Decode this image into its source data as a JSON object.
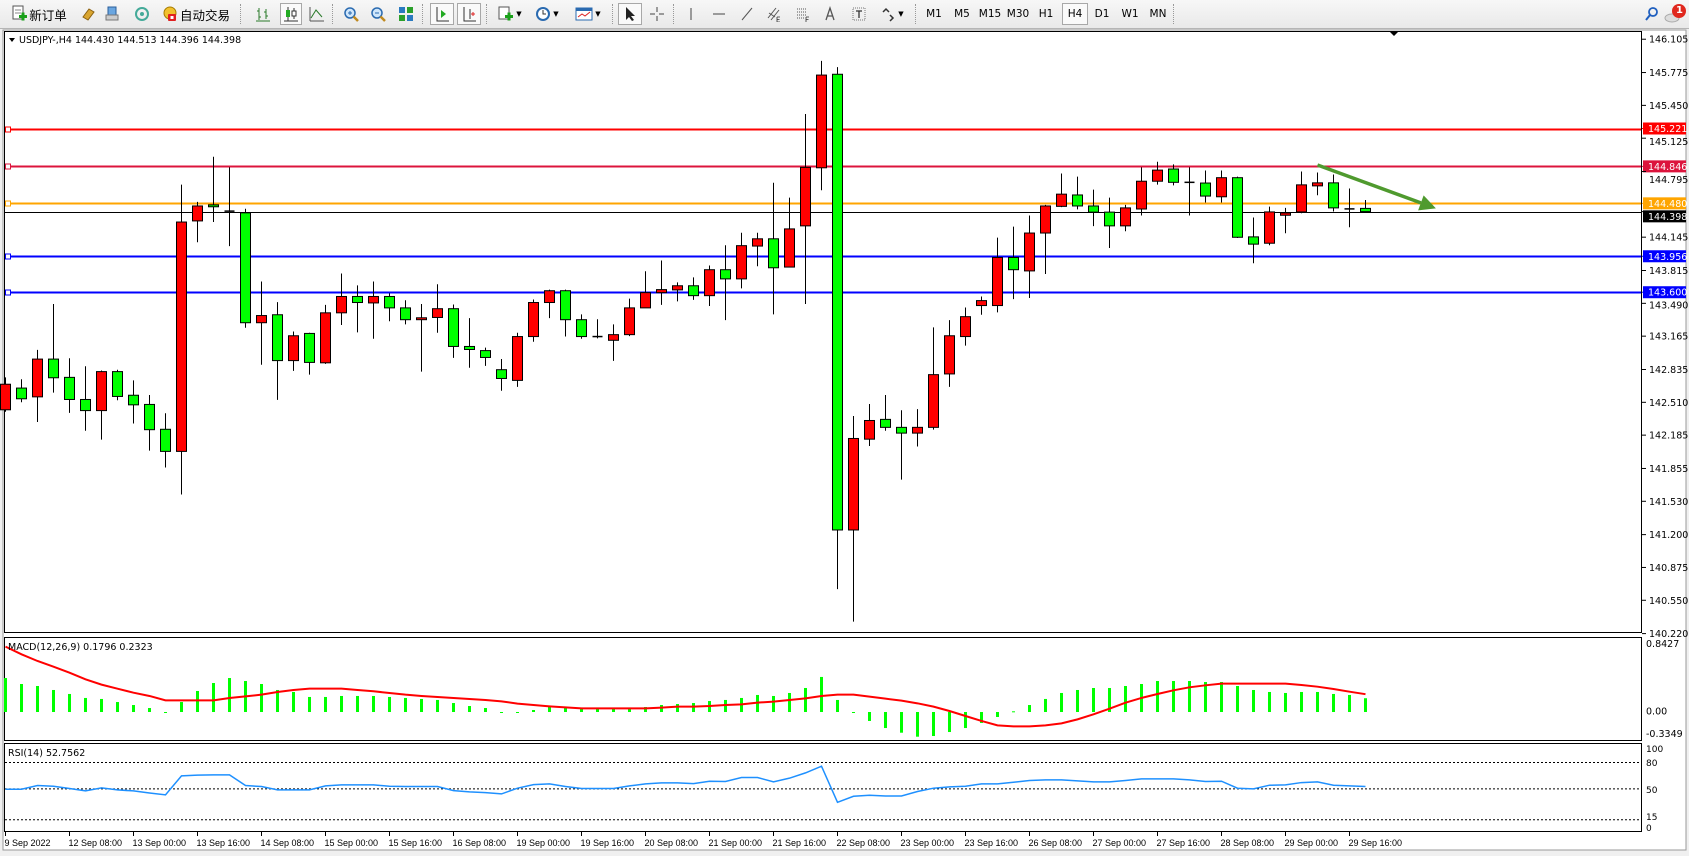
{
  "toolbar": {
    "new_order_label": "新订单",
    "auto_trading_label": "自动交易",
    "timeframes": [
      "M1",
      "M5",
      "M15",
      "M30",
      "H1",
      "H4",
      "D1",
      "W1",
      "MN"
    ],
    "active_timeframe": "H4",
    "notification_count": "1",
    "icons": [
      "new-order-icon",
      "market-watch-icon",
      "navigator-icon",
      "signals-icon",
      "auto-trading-icon",
      "bar-chart-icon",
      "candlestick-icon",
      "line-chart-icon",
      "zoom-in-icon",
      "zoom-out-icon",
      "tile-windows-icon",
      "chart-shift-icon",
      "auto-scroll-icon",
      "indicators-icon",
      "periods-icon",
      "templates-icon",
      "cursor-icon",
      "crosshair-icon",
      "vertical-line-icon",
      "horizontal-line-icon",
      "trendline-icon",
      "equidistant-channel-icon",
      "fibonacci-icon",
      "text-icon",
      "text-label-icon",
      "arrows-icon",
      "search-icon",
      "notification-icon"
    ]
  },
  "chart": {
    "header": "USDJPY-,H4  144.430 144.513 144.396 144.398",
    "macd_header": "MACD(12,26,9) 0.1796 0.2323",
    "rsi_header": "RSI(14) 52.7562"
  },
  "chart_data": {
    "type": "candlestick",
    "symbol": "USDJPY-",
    "timeframe": "H4",
    "bullish_color": "#ff0000",
    "bearish_color": "#00ff00",
    "price_axis_labels": [
      "146.105",
      "145.775",
      "145.450",
      "145.125",
      "144.795",
      "144.145",
      "143.815",
      "143.490",
      "143.165",
      "142.835",
      "142.510",
      "142.185",
      "141.855",
      "141.530",
      "141.200",
      "140.875",
      "140.550",
      "140.220"
    ],
    "time_labels": [
      "9 Sep 2022",
      "12 Sep 08:00",
      "13 Sep 00:00",
      "13 Sep 16:00",
      "14 Sep 08:00",
      "15 Sep 00:00",
      "15 Sep 16:00",
      "16 Sep 08:00",
      "19 Sep 00:00",
      "19 Sep 16:00",
      "20 Sep 08:00",
      "21 Sep 00:00",
      "21 Sep 16:00",
      "22 Sep 08:00",
      "23 Sep 00:00",
      "23 Sep 16:00",
      "26 Sep 08:00",
      "27 Sep 00:00",
      "27 Sep 16:00",
      "28 Sep 08:00",
      "29 Sep 00:00",
      "29 Sep 16:00"
    ],
    "ylim": [
      140.22,
      146.105
    ],
    "horizontal_lines": [
      {
        "price": "145.221",
        "color": "#ff0000"
      },
      {
        "price": "144.846",
        "color": "#dc143c"
      },
      {
        "price": "144.480",
        "color": "#ffa500"
      },
      {
        "price": "143.956",
        "color": "#0000ff"
      },
      {
        "price": "143.600",
        "color": "#0000ff"
      }
    ],
    "current_price": "144.398",
    "trend_arrow": {
      "color": "#4f9a2e",
      "from": {
        "candle": 82,
        "price": 144.86
      },
      "to": {
        "candle": 89.4,
        "price": 144.43
      }
    },
    "ohlc": [
      [
        142.436,
        142.757,
        142.417,
        142.689
      ],
      [
        142.651,
        142.738,
        142.511,
        142.545
      ],
      [
        142.564,
        143.029,
        142.315,
        142.938
      ],
      [
        142.938,
        143.483,
        142.606,
        142.753
      ],
      [
        142.757,
        142.946,
        142.406,
        142.538
      ],
      [
        142.538,
        142.867,
        142.228,
        142.428
      ],
      [
        142.428,
        142.825,
        142.141,
        142.814
      ],
      [
        142.814,
        142.833,
        142.53,
        142.568
      ],
      [
        142.58,
        142.727,
        142.3,
        142.485
      ],
      [
        142.489,
        142.583,
        142.032,
        142.239
      ],
      [
        142.243,
        142.402,
        141.865,
        142.024
      ],
      [
        142.024,
        144.665,
        141.597,
        144.295
      ],
      [
        144.306,
        144.495,
        144.095,
        144.454
      ],
      [
        144.465,
        144.941,
        144.295,
        144.446
      ],
      [
        144.405,
        144.836,
        144.057,
        144.403
      ],
      [
        144.386,
        144.427,
        143.248,
        143.298
      ],
      [
        143.298,
        143.706,
        142.882,
        143.369
      ],
      [
        143.377,
        143.502,
        142.534,
        142.923
      ],
      [
        142.923,
        143.211,
        142.821,
        143.169
      ],
      [
        143.192,
        143.199,
        142.784,
        142.905
      ],
      [
        142.901,
        143.475,
        142.89,
        143.396
      ],
      [
        143.396,
        143.785,
        143.275,
        143.558
      ],
      [
        143.558,
        143.668,
        143.203,
        143.498
      ],
      [
        143.494,
        143.706,
        143.139,
        143.558
      ],
      [
        143.558,
        143.588,
        143.313,
        143.445
      ],
      [
        143.445,
        143.521,
        143.282,
        143.328
      ],
      [
        143.328,
        143.483,
        142.814,
        143.347
      ],
      [
        143.35,
        143.679,
        143.199,
        143.437
      ],
      [
        143.437,
        143.479,
        142.95,
        143.063
      ],
      [
        143.063,
        143.343,
        142.852,
        143.033
      ],
      [
        143.022,
        143.052,
        142.871,
        142.954
      ],
      [
        142.833,
        142.939,
        142.625,
        142.746
      ],
      [
        142.727,
        143.199,
        142.663,
        143.161
      ],
      [
        143.161,
        143.528,
        143.109,
        143.498
      ],
      [
        143.498,
        143.626,
        143.343,
        143.615
      ],
      [
        143.615,
        143.626,
        143.161,
        143.328
      ],
      [
        143.328,
        143.381,
        143.139,
        143.161
      ],
      [
        143.165,
        143.332,
        143.143,
        143.161
      ],
      [
        143.124,
        143.282,
        142.92,
        143.18
      ],
      [
        143.18,
        143.536,
        143.165,
        143.445
      ],
      [
        143.445,
        143.808,
        143.445,
        143.596
      ],
      [
        143.596,
        143.914,
        143.475,
        143.626
      ],
      [
        143.623,
        143.698,
        143.509,
        143.664
      ],
      [
        143.664,
        143.747,
        143.524,
        143.566
      ],
      [
        143.566,
        143.864,
        143.464,
        143.823
      ],
      [
        143.823,
        144.065,
        143.324,
        143.732
      ],
      [
        143.732,
        144.189,
        143.638,
        144.061
      ],
      [
        144.057,
        144.189,
        143.857,
        144.129
      ],
      [
        144.129,
        144.684,
        143.381,
        143.842
      ],
      [
        143.849,
        144.537,
        143.849,
        144.227
      ],
      [
        144.257,
        145.365,
        143.483,
        144.836
      ],
      [
        144.832,
        145.89,
        144.609,
        145.75
      ],
      [
        145.758,
        145.829,
        140.66,
        141.246
      ],
      [
        141.246,
        142.375,
        140.339,
        142.152
      ],
      [
        142.145,
        142.493,
        142.077,
        142.33
      ],
      [
        142.341,
        142.583,
        142.228,
        142.262
      ],
      [
        142.262,
        142.432,
        141.744,
        142.205
      ],
      [
        142.205,
        142.443,
        142.073,
        142.262
      ],
      [
        142.262,
        143.252,
        142.239,
        142.784
      ],
      [
        142.791,
        143.324,
        142.663,
        143.169
      ],
      [
        143.161,
        143.449,
        143.071,
        143.358
      ],
      [
        143.468,
        143.558,
        143.377,
        143.517
      ],
      [
        143.468,
        144.14,
        143.4,
        143.944
      ],
      [
        143.944,
        144.25,
        143.532,
        143.823
      ],
      [
        143.811,
        144.359,
        143.543,
        144.186
      ],
      [
        144.186,
        144.465,
        143.781,
        144.454
      ],
      [
        144.45,
        144.775,
        144.443,
        144.571
      ],
      [
        144.563,
        144.745,
        144.42,
        144.454
      ],
      [
        144.454,
        144.616,
        144.254,
        144.393
      ],
      [
        144.393,
        144.537,
        144.038,
        144.257
      ],
      [
        144.257,
        144.465,
        144.204,
        144.435
      ],
      [
        144.424,
        144.836,
        144.359,
        144.699
      ],
      [
        144.699,
        144.892,
        144.665,
        144.809
      ],
      [
        144.82,
        144.866,
        144.658,
        144.688
      ],
      [
        144.69,
        144.836,
        144.359,
        144.688
      ],
      [
        144.681,
        144.805,
        144.488,
        144.552
      ],
      [
        144.545,
        144.805,
        144.488,
        144.734
      ],
      [
        144.734,
        144.745,
        144.137,
        144.144
      ],
      [
        144.148,
        144.34,
        143.887,
        144.076
      ],
      [
        144.085,
        144.448,
        144.065,
        144.395
      ],
      [
        144.362,
        144.435,
        144.184,
        144.385
      ],
      [
        144.395,
        144.795,
        144.382,
        144.663
      ],
      [
        144.653,
        144.785,
        144.56,
        144.683
      ],
      [
        144.683,
        144.765,
        144.399,
        144.435
      ],
      [
        144.428,
        144.627,
        144.243,
        144.425
      ],
      [
        144.43,
        144.513,
        144.396,
        144.398
      ]
    ],
    "macd": {
      "axis_labels": [
        "0.8427",
        "0.00",
        "-0.3349"
      ],
      "ylim": [
        -0.3349,
        0.8427
      ],
      "histogram_color": "#00ff00",
      "signal_color": "#ff0000",
      "histogram": [
        0.443,
        0.365,
        0.339,
        0.287,
        0.235,
        0.183,
        0.17,
        0.13,
        0.091,
        0.052,
        -0.01,
        0.13,
        0.274,
        0.378,
        0.443,
        0.404,
        0.365,
        0.287,
        0.261,
        0.196,
        0.196,
        0.209,
        0.209,
        0.209,
        0.196,
        0.183,
        0.17,
        0.157,
        0.117,
        0.078,
        0.052,
        -0.005,
        -0.01,
        0.026,
        0.065,
        0.052,
        0.052,
        0.052,
        0.052,
        0.052,
        0.065,
        0.091,
        0.104,
        0.117,
        0.143,
        0.157,
        0.183,
        0.222,
        0.209,
        0.248,
        0.313,
        0.457,
        0.157,
        -0.01,
        -0.117,
        -0.209,
        -0.27,
        -0.322,
        -0.313,
        -0.261,
        -0.209,
        -0.143,
        -0.065,
        0.009,
        0.091,
        0.17,
        0.248,
        0.287,
        0.313,
        0.313,
        0.339,
        0.365,
        0.404,
        0.404,
        0.404,
        0.391,
        0.391,
        0.339,
        0.287,
        0.261,
        0.248,
        0.261,
        0.261,
        0.235,
        0.222,
        0.1796
      ],
      "signal": [
        0.852,
        0.752,
        0.665,
        0.591,
        0.513,
        0.426,
        0.357,
        0.304,
        0.252,
        0.209,
        0.152,
        0.152,
        0.152,
        0.152,
        0.183,
        0.204,
        0.226,
        0.261,
        0.287,
        0.304,
        0.304,
        0.304,
        0.287,
        0.27,
        0.248,
        0.226,
        0.209,
        0.196,
        0.183,
        0.17,
        0.157,
        0.139,
        0.109,
        0.091,
        0.074,
        0.061,
        0.048,
        0.048,
        0.048,
        0.048,
        0.048,
        0.057,
        0.07,
        0.07,
        0.078,
        0.091,
        0.1,
        0.122,
        0.135,
        0.157,
        0.178,
        0.209,
        0.226,
        0.226,
        0.2,
        0.174,
        0.148,
        0.113,
        0.07,
        0.013,
        -0.052,
        -0.117,
        -0.174,
        -0.187,
        -0.187,
        -0.174,
        -0.148,
        -0.096,
        -0.03,
        0.043,
        0.122,
        0.183,
        0.235,
        0.283,
        0.322,
        0.348,
        0.37,
        0.37,
        0.37,
        0.37,
        0.37,
        0.352,
        0.33,
        0.3,
        0.265,
        0.2323
      ]
    },
    "rsi": {
      "axis_labels": [
        "100",
        "80",
        "50",
        "15",
        "0"
      ],
      "levels": [
        80,
        50,
        15
      ],
      "ylim": [
        0,
        100
      ],
      "color": "#1e90ff",
      "values": [
        49.6,
        49.6,
        53.8,
        53.0,
        50.4,
        47.7,
        51.1,
        48.9,
        47.7,
        45.4,
        43.2,
        64.8,
        65.6,
        66.0,
        66.0,
        53.8,
        52.7,
        48.9,
        48.9,
        48.9,
        53.4,
        54.6,
        54.6,
        54.6,
        53.0,
        52.7,
        52.7,
        52.7,
        48.1,
        46.6,
        45.8,
        44.3,
        50.8,
        54.9,
        55.7,
        52.7,
        50.4,
        50.4,
        50.4,
        53.4,
        55.7,
        56.8,
        56.8,
        56.0,
        58.7,
        58.4,
        62.9,
        62.9,
        58.0,
        62.2,
        68.2,
        75.8,
        34.8,
        41.6,
        42.8,
        42.0,
        42.0,
        47.0,
        50.8,
        52.3,
        53.0,
        55.7,
        55.7,
        57.6,
        59.5,
        60.3,
        60.3,
        59.1,
        58.0,
        58.0,
        59.5,
        61.4,
        61.4,
        61.4,
        60.3,
        58.4,
        58.7,
        50.8,
        50.0,
        54.2,
        54.6,
        57.2,
        58.0,
        54.2,
        53.4,
        52.7562
      ]
    }
  }
}
